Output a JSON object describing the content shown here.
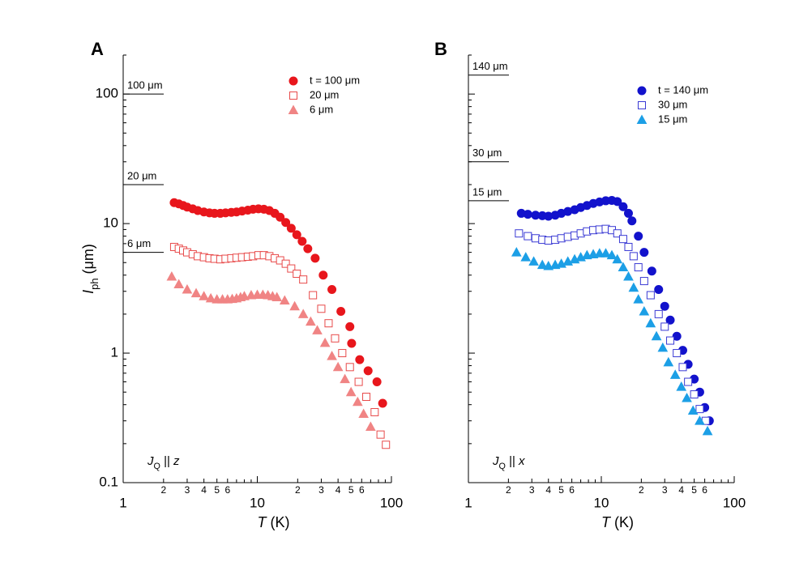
{
  "chart_data": [
    {
      "type": "scatter",
      "panel": "A",
      "log_x": true,
      "log_y": true,
      "xlabel": [
        "T",
        " (K)"
      ],
      "ylabel": [
        "I",
        "ph",
        " (μm)"
      ],
      "annotation": [
        "J",
        "Q",
        " || ",
        "z"
      ],
      "xlim": [
        1,
        100
      ],
      "ylim": [
        0.1,
        200
      ],
      "xticks": [
        1,
        2,
        3,
        4,
        5,
        6,
        10,
        {
          "value": 20,
          "label": "2"
        },
        {
          "value": 30,
          "label": "3"
        },
        {
          "value": 40,
          "label": "4"
        },
        {
          "value": 50,
          "label": "5"
        },
        {
          "value": 60,
          "label": "6"
        },
        100
      ],
      "xminor": [
        7,
        8,
        9,
        70,
        80,
        90
      ],
      "yticks": [
        0.1,
        1,
        10,
        100
      ],
      "ytick_labels": true,
      "yminor": [
        0.2,
        0.3,
        0.4,
        0.5,
        0.6,
        0.7,
        0.8,
        0.9,
        2,
        3,
        4,
        5,
        6,
        7,
        8,
        9,
        20,
        30,
        40,
        50,
        60,
        70,
        80,
        90,
        200
      ],
      "reference_lines": [
        {
          "label": "100 μm",
          "value": 100
        },
        {
          "label": "20 μm",
          "value": 20
        },
        {
          "label": "6 μm",
          "value": 6
        }
      ],
      "series": [
        {
          "name": "t = 100 μm",
          "color": "#e8161c",
          "marker": "circle",
          "filled": true,
          "x": [
            2.4,
            2.6,
            2.8,
            3.0,
            3.3,
            3.6,
            4.0,
            4.4,
            4.8,
            5.3,
            5.8,
            6.4,
            7.0,
            7.7,
            8.5,
            9.3,
            10.2,
            11.2,
            12.3,
            13.5,
            14.8,
            16.3,
            17.9,
            19.7,
            21.6,
            23.8,
            27,
            31,
            36,
            42,
            49,
            50.5,
            58,
            67,
            78,
            86
          ],
          "values": [
            14.5,
            14.2,
            13.8,
            13.4,
            13.0,
            12.6,
            12.3,
            12.1,
            12.0,
            12.0,
            12.1,
            12.2,
            12.3,
            12.5,
            12.7,
            12.9,
            13.0,
            12.9,
            12.6,
            12.0,
            11.2,
            10.2,
            9.2,
            8.2,
            7.3,
            6.4,
            5.4,
            4.0,
            3.1,
            2.1,
            1.6,
            1.19,
            0.89,
            0.73,
            0.6,
            0.41
          ]
        },
        {
          "name": "20 μm",
          "color": "#e84a4a",
          "marker": "square",
          "filled": false,
          "x": [
            2.4,
            2.6,
            2.8,
            3.0,
            3.3,
            3.6,
            4.0,
            4.4,
            4.8,
            5.3,
            5.8,
            6.4,
            7.0,
            7.7,
            8.5,
            9.3,
            10.2,
            11.2,
            12.3,
            13.5,
            14.8,
            16.3,
            17.9,
            19.7,
            22,
            26,
            30,
            34,
            38,
            43,
            49,
            57,
            65,
            75,
            83,
            91
          ],
          "values": [
            6.6,
            6.4,
            6.2,
            6.0,
            5.8,
            5.6,
            5.5,
            5.4,
            5.35,
            5.3,
            5.35,
            5.4,
            5.45,
            5.5,
            5.55,
            5.6,
            5.7,
            5.7,
            5.6,
            5.4,
            5.2,
            4.9,
            4.5,
            4.1,
            3.7,
            2.8,
            2.2,
            1.7,
            1.3,
            1.0,
            0.78,
            0.6,
            0.46,
            0.35,
            0.235,
            0.196
          ]
        },
        {
          "name": "6 μm",
          "color": "#f08484",
          "marker": "triangle",
          "filled": true,
          "x": [
            2.3,
            2.6,
            3.0,
            3.5,
            4.0,
            4.5,
            5.0,
            5.5,
            6.0,
            6.5,
            7.0,
            7.5,
            8.0,
            9.0,
            10.0,
            11.0,
            12.0,
            13.0,
            14.0,
            16.0,
            19.0,
            22.0,
            25.0,
            28.0,
            32.0,
            36.0,
            40.0,
            45.0,
            50.0,
            56.0,
            62.0,
            70.0
          ],
          "values": [
            3.9,
            3.4,
            3.1,
            2.9,
            2.75,
            2.65,
            2.6,
            2.6,
            2.6,
            2.62,
            2.65,
            2.7,
            2.75,
            2.8,
            2.82,
            2.82,
            2.8,
            2.75,
            2.7,
            2.55,
            2.3,
            2.0,
            1.75,
            1.5,
            1.2,
            0.95,
            0.78,
            0.63,
            0.5,
            0.42,
            0.34,
            0.27
          ]
        }
      ]
    },
    {
      "type": "scatter",
      "panel": "B",
      "log_x": true,
      "log_y": true,
      "xlabel": [
        "T",
        " (K)"
      ],
      "annotation": [
        "J",
        "Q",
        " || ",
        "x"
      ],
      "xlim": [
        1,
        100
      ],
      "ylim": [
        0.1,
        200
      ],
      "xticks": [
        1,
        2,
        3,
        4,
        5,
        6,
        10,
        {
          "value": 20,
          "label": "2"
        },
        {
          "value": 30,
          "label": "3"
        },
        {
          "value": 40,
          "label": "4"
        },
        {
          "value": 50,
          "label": "5"
        },
        {
          "value": 60,
          "label": "6"
        },
        100
      ],
      "xminor": [
        7,
        8,
        9,
        70,
        80,
        90
      ],
      "yticks": [
        0.1,
        1,
        10,
        100
      ],
      "ytick_labels": false,
      "yminor": [
        0.2,
        0.3,
        0.4,
        0.5,
        0.6,
        0.7,
        0.8,
        0.9,
        2,
        3,
        4,
        5,
        6,
        7,
        8,
        9,
        20,
        30,
        40,
        50,
        60,
        70,
        80,
        90,
        200
      ],
      "reference_lines": [
        {
          "label": "140 μm",
          "value": 140
        },
        {
          "label": "30 μm",
          "value": 30
        },
        {
          "label": "15 μm",
          "value": 15
        }
      ],
      "series": [
        {
          "name": "t = 140 μm",
          "color": "#1212cc",
          "marker": "circle",
          "filled": true,
          "x": [
            2.5,
            2.8,
            3.2,
            3.6,
            4.0,
            4.5,
            5.0,
            5.6,
            6.3,
            7.0,
            7.8,
            8.7,
            9.7,
            10.8,
            12.0,
            13.2,
            14.6,
            16.0,
            17.0,
            19.0,
            21.0,
            24.0,
            27.0,
            30.0,
            33.0,
            37.0,
            41.0,
            45.0,
            50.0,
            55.0,
            60.0,
            65.0
          ],
          "values": [
            12.0,
            11.8,
            11.6,
            11.5,
            11.4,
            11.6,
            12.0,
            12.4,
            12.8,
            13.3,
            13.8,
            14.3,
            14.7,
            15.0,
            15.1,
            14.8,
            13.5,
            12.0,
            10.5,
            8.0,
            6.0,
            4.3,
            3.1,
            2.3,
            1.8,
            1.35,
            1.05,
            0.82,
            0.63,
            0.5,
            0.38,
            0.3
          ]
        },
        {
          "name": "30 μm",
          "color": "#3a3ad4",
          "marker": "square",
          "filled": false,
          "x": [
            2.4,
            2.8,
            3.2,
            3.6,
            4.0,
            4.5,
            5.0,
            5.6,
            6.3,
            7.0,
            7.8,
            8.7,
            9.7,
            10.8,
            12.0,
            13.2,
            14.6,
            16.0,
            17.5,
            19.0,
            21.0,
            23.5,
            27.0,
            30.0,
            33.0,
            37.0,
            41.0,
            45.0,
            50.0,
            55.0,
            61.0
          ],
          "values": [
            8.4,
            8.0,
            7.7,
            7.5,
            7.4,
            7.5,
            7.7,
            7.9,
            8.1,
            8.4,
            8.7,
            8.9,
            9.0,
            9.1,
            8.9,
            8.4,
            7.6,
            6.6,
            5.6,
            4.6,
            3.6,
            2.8,
            2.0,
            1.6,
            1.25,
            1.0,
            0.78,
            0.6,
            0.48,
            0.37,
            0.3
          ]
        },
        {
          "name": "15 μm",
          "color": "#1c9fe6",
          "marker": "triangle",
          "filled": true,
          "x": [
            2.3,
            2.7,
            3.1,
            3.6,
            4.0,
            4.5,
            5.0,
            5.6,
            6.3,
            7.0,
            7.8,
            8.7,
            9.7,
            10.8,
            12.0,
            13.2,
            14.6,
            16.0,
            17.5,
            19.0,
            21.0,
            23.5,
            26.0,
            29.0,
            32.0,
            36.0,
            40.0,
            44.0,
            49.0,
            55.0,
            63.0
          ],
          "values": [
            6.0,
            5.5,
            5.1,
            4.8,
            4.7,
            4.8,
            4.9,
            5.1,
            5.3,
            5.5,
            5.7,
            5.8,
            5.9,
            5.9,
            5.7,
            5.3,
            4.6,
            3.9,
            3.2,
            2.6,
            2.1,
            1.7,
            1.35,
            1.1,
            0.85,
            0.68,
            0.55,
            0.45,
            0.36,
            0.3,
            0.25
          ]
        }
      ]
    }
  ]
}
